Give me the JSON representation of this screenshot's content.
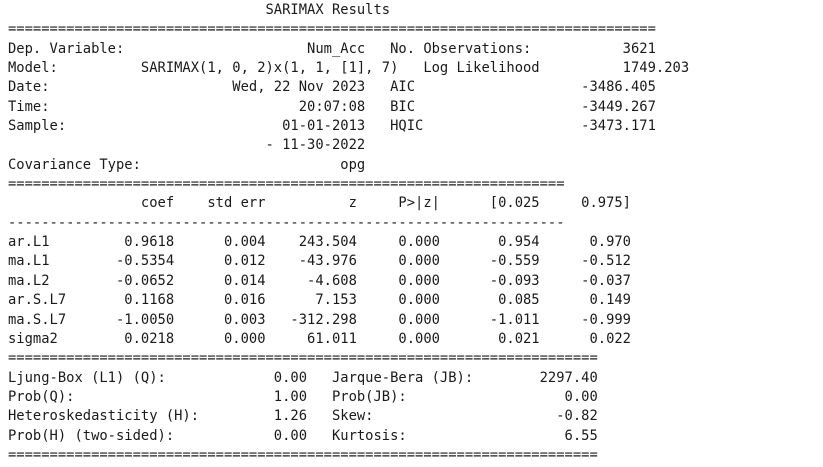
{
  "title": "SARIMAX Results",
  "rule_double_full": "==============================================================================",
  "rule_double_mid": "==================================================================================",
  "rule_single_mid": "----------------------------------------------------------------------------------",
  "rule_double_short": "==============================================================================",
  "header": {
    "rows": [
      {
        "label": "Dep. Variable:",
        "value": "Num_Acc",
        "label2": "No. Observations:",
        "value2": "3621"
      },
      {
        "label": "Model:",
        "value": "SARIMAX(1, 0, 2)x(1, 1, [1], 7)",
        "label2": "Log Likelihood",
        "value2": "1749.203"
      },
      {
        "label": "Date:",
        "value": "Wed, 22 Nov 2023",
        "label2": "AIC",
        "value2": "-3486.405"
      },
      {
        "label": "Time:",
        "value": "20:07:08",
        "label2": "BIC",
        "value2": "-3449.267"
      },
      {
        "label": "Sample:",
        "value": "01-01-2013",
        "label2": "HQIC",
        "value2": "-3473.171"
      },
      {
        "label": "",
        "value": "- 11-30-2022",
        "label2": "",
        "value2": ""
      },
      {
        "label": "Covariance Type:",
        "value": "opg",
        "label2": "",
        "value2": ""
      }
    ]
  },
  "coef_table": {
    "columns": [
      "coef",
      "std err",
      "z",
      "P>|z|",
      "[0.025",
      "0.975]"
    ],
    "rows": [
      {
        "name": "ar.L1",
        "values": [
          "0.9618",
          "0.004",
          "243.504",
          "0.000",
          "0.954",
          "0.970"
        ]
      },
      {
        "name": "ma.L1",
        "values": [
          "-0.5354",
          "0.012",
          "-43.976",
          "0.000",
          "-0.559",
          "-0.512"
        ]
      },
      {
        "name": "ma.L2",
        "values": [
          "-0.0652",
          "0.014",
          "-4.608",
          "0.000",
          "-0.093",
          "-0.037"
        ]
      },
      {
        "name": "ar.S.L7",
        "values": [
          "0.1168",
          "0.016",
          "7.153",
          "0.000",
          "0.085",
          "0.149"
        ]
      },
      {
        "name": "ma.S.L7",
        "values": [
          "-1.0050",
          "0.003",
          "-312.298",
          "0.000",
          "-1.011",
          "-0.999"
        ]
      },
      {
        "name": "sigma2",
        "values": [
          "0.0218",
          "0.000",
          "61.011",
          "0.000",
          "0.021",
          "0.022"
        ]
      }
    ]
  },
  "diagnostics": {
    "rows": [
      {
        "label": "Ljung-Box (L1) (Q):",
        "value": "0.00",
        "label2": "Jarque-Bera (JB):",
        "value2": "2297.40"
      },
      {
        "label": "Prob(Q):",
        "value": "1.00",
        "label2": "Prob(JB):",
        "value2": "0.00"
      },
      {
        "label": "Heteroskedasticity (H):",
        "value": "1.26",
        "label2": "Skew:",
        "value2": "-0.82"
      },
      {
        "label": "Prob(H) (two-sided):",
        "value": "0.00",
        "label2": "Kurtosis:",
        "value2": "6.55"
      }
    ]
  }
}
